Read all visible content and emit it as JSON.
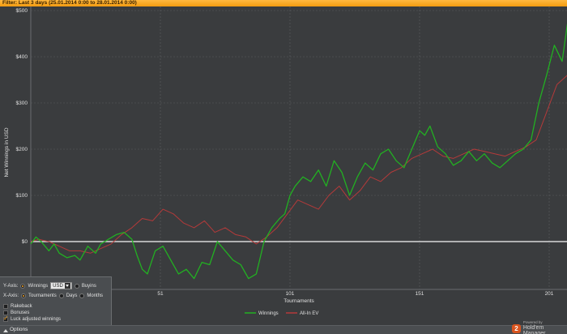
{
  "filter_text": "Filter: Last 3 days (25.01.2014 0:00 to 28.01.2014 0:00)",
  "chart_data": {
    "type": "line",
    "xlabel": "Tournaments",
    "ylabel": "Net Winnings in USD",
    "x_ticks": [
      1,
      51,
      101,
      151,
      201
    ],
    "y_ticks": [
      0,
      100,
      200,
      300,
      400,
      500
    ],
    "y_tick_labels": [
      "$0",
      "$100",
      "$200",
      "$300",
      "$400",
      "$500"
    ],
    "xlim": [
      1,
      210
    ],
    "ylim": [
      -100,
      500
    ],
    "grid": true,
    "legend_position": "bottom",
    "series": [
      {
        "name": "Winnings",
        "color": "#22b022",
        "x": [
          1,
          3,
          5,
          8,
          10,
          12,
          15,
          18,
          20,
          23,
          26,
          28,
          31,
          34,
          37,
          40,
          42,
          44,
          46,
          49,
          52,
          55,
          58,
          61,
          64,
          67,
          70,
          73,
          76,
          79,
          82,
          85,
          88,
          91,
          94,
          97,
          99,
          101,
          103,
          106,
          109,
          112,
          115,
          118,
          121,
          124,
          127,
          130,
          133,
          136,
          139,
          142,
          145,
          148,
          151,
          153,
          155,
          158,
          161,
          164,
          167,
          170,
          173,
          176,
          179,
          182,
          185,
          188,
          191,
          194,
          197,
          200,
          203,
          206,
          208,
          210
        ],
        "y": [
          -5,
          10,
          0,
          -20,
          -5,
          -25,
          -35,
          -30,
          -40,
          -10,
          -25,
          -5,
          5,
          15,
          20,
          5,
          -30,
          -60,
          -70,
          -20,
          -10,
          -40,
          -70,
          -60,
          -80,
          -45,
          -50,
          0,
          -20,
          -40,
          -50,
          -80,
          -70,
          0,
          30,
          50,
          60,
          100,
          120,
          140,
          130,
          155,
          120,
          175,
          150,
          100,
          140,
          170,
          155,
          190,
          200,
          175,
          160,
          200,
          240,
          230,
          250,
          205,
          190,
          165,
          175,
          195,
          175,
          190,
          170,
          160,
          175,
          190,
          200,
          220,
          300,
          360,
          425,
          390,
          470,
          480
        ]
      },
      {
        "name": "All-In EV",
        "color": "#b43a3a",
        "x": [
          1,
          4,
          8,
          12,
          16,
          20,
          24,
          28,
          32,
          36,
          40,
          44,
          48,
          52,
          56,
          60,
          64,
          68,
          72,
          76,
          80,
          84,
          88,
          92,
          96,
          100,
          104,
          108,
          112,
          116,
          120,
          124,
          128,
          132,
          136,
          140,
          144,
          148,
          152,
          156,
          160,
          164,
          168,
          172,
          176,
          180,
          184,
          188,
          192,
          196,
          200,
          204,
          208,
          210
        ],
        "y": [
          0,
          5,
          0,
          -10,
          -20,
          -20,
          -25,
          -15,
          -5,
          15,
          30,
          50,
          45,
          70,
          60,
          40,
          30,
          45,
          20,
          30,
          15,
          10,
          -5,
          10,
          30,
          60,
          90,
          80,
          70,
          100,
          120,
          90,
          110,
          140,
          130,
          150,
          160,
          180,
          190,
          200,
          185,
          180,
          190,
          200,
          195,
          190,
          185,
          195,
          205,
          220,
          280,
          340,
          360,
          410
        ]
      }
    ]
  },
  "options_panel": {
    "y_axis_label": "Y-Axis:",
    "winnings_label": "Winnings",
    "currency_value": "USD",
    "buyins_label": "Buyins",
    "x_axis_label": "X-Axis:",
    "tournaments_label": "Tournaments",
    "days_label": "Days",
    "months_label": "Months",
    "rakeback_label": "Rakeback",
    "bonuses_label": "Bonuses",
    "luck_adjusted_label": "Luck adjusted winnings"
  },
  "options_button_label": "Options",
  "branding": {
    "logo_text": "2",
    "powered_by": "Powered by",
    "name": "Hold'em Manager"
  },
  "colors": {
    "background": "#3a3c3e",
    "filter_bar": "#f7a52a",
    "grid": "#5a5d60",
    "zero_line": "#d8d8d8"
  }
}
